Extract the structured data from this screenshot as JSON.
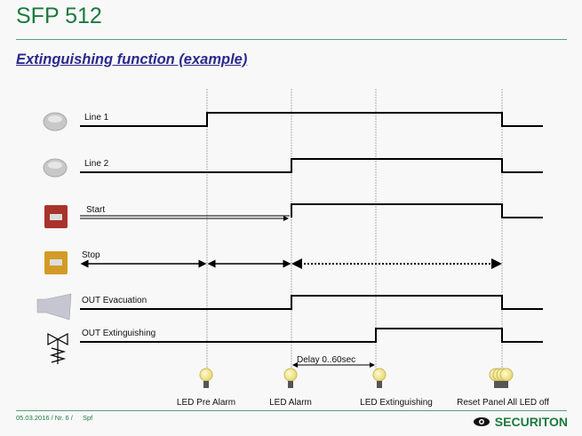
{
  "header": {
    "title": "SFP 512",
    "subtitle": "Extinguishing function (example)"
  },
  "signals": [
    {
      "label": "Line 1",
      "icon": "smoke-detector-icon"
    },
    {
      "label": "Line 2",
      "icon": "smoke-detector-icon"
    },
    {
      "label": "Start",
      "icon": "red-manual-call-point-icon"
    },
    {
      "label": "Stop",
      "icon": "yellow-manual-call-point-icon"
    },
    {
      "label": "OUT Evacuation",
      "icon": "horn-icon"
    },
    {
      "label": "OUT Extinguishing",
      "icon": "valve-icon"
    }
  ],
  "delay_label": "Delay 0..60sec",
  "events": [
    {
      "label": "LED Pre Alarm",
      "icon": "bulb-icon"
    },
    {
      "label": "LED Alarm",
      "icon": "bulb-icon"
    },
    {
      "label": "LED Extinguishing",
      "icon": "bulb-icon"
    },
    {
      "label": "Reset Panel All LED off",
      "icon": "multiple-bulbs-icon"
    }
  ],
  "footer": {
    "date": "05.03.2016 / Nr. 6 /",
    "author": "Spf",
    "brand": "SECURITON"
  },
  "colors": {
    "title": "#1b7a3e",
    "subtitle": "#2a2a8c",
    "brand": "#1b7a3e"
  }
}
